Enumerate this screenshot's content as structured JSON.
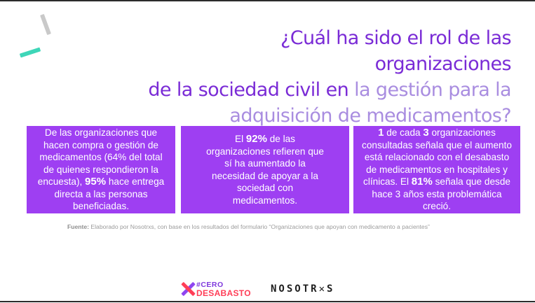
{
  "title": {
    "part1": "¿Cuál ha sido el rol de las organizaciones",
    "part2": "de la sociedad civil en",
    "part3": "la gestión para la",
    "part4": "adquisición de medicamentos?"
  },
  "cards": [
    {
      "pre": "De las organizaciones que hacen compra o gestión de medicamentos (64% del total de quienes respondieron la encuesta), ",
      "highlight": "95%",
      "post": " hace entrega directa a las personas beneficiadas."
    },
    {
      "pre": "El ",
      "highlight": "92%",
      "post": " de las organizaciones refieren que sí ha aumentado la necesidad de apoyar a la sociedad con medicamentos."
    },
    {
      "h1": "1",
      "mid1": " de cada ",
      "h2": "3",
      "mid2": " organizaciones consultadas señala que el aumento está relacionado con el desabasto de medicamentos en hospitales y clínicas. El ",
      "h3": "81%",
      "post": " señala que desde hace 3 años esta problemática creció."
    }
  ],
  "source": {
    "label": "Fuente:",
    "text": " Elaborado por Nosotrxs,  con base en los resultados del formulario “Organizaciones que apoyan con medicamento a pacientes”"
  },
  "logos": {
    "cero_line1": "#CERO",
    "cero_line2": "DESABASTO",
    "nosotrxs": "NOSOTR✕S"
  },
  "colors": {
    "accent_dark": "#7a2bd6",
    "accent_light": "#a98de0",
    "card_bg": "#9e3ff2",
    "teal": "#3ed6b8",
    "red": "#ff3e57"
  }
}
